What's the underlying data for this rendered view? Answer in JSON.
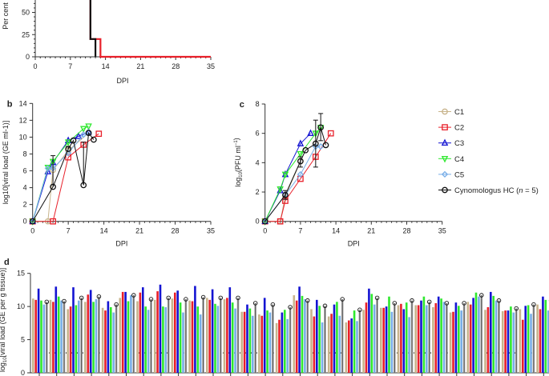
{
  "colors": {
    "C1": "#c8b48c",
    "C2": "#e8202a",
    "C3": "#1414d2",
    "C4": "#2ee82e",
    "C5": "#78aee8",
    "HC": "#111111",
    "HC_bar": "#a8a8a8"
  },
  "legend": [
    {
      "key": "C1",
      "label": "C1",
      "marker": "circle"
    },
    {
      "key": "C2",
      "label": "C2",
      "marker": "square"
    },
    {
      "key": "C3",
      "label": "C3",
      "marker": "triangle-up"
    },
    {
      "key": "C4",
      "label": "C4",
      "marker": "triangle-down"
    },
    {
      "key": "C5",
      "label": "C5",
      "marker": "diamond"
    },
    {
      "key": "HC",
      "label": "Cynomologus HC (",
      "label_italic": "n",
      "label_end": " = 5)",
      "marker": "circle"
    }
  ],
  "chart_data": [
    {
      "panel": "a",
      "type": "line",
      "step": true,
      "ylabel": "Per cent",
      "xlabel": "DPI",
      "xlim": [
        0,
        35
      ],
      "xticks": [
        0,
        7,
        14,
        21,
        28,
        35
      ],
      "yticks": [
        0,
        25,
        50
      ],
      "series": [
        {
          "key": "C2",
          "x": [
            0,
            11,
            11,
            13,
            13,
            35
          ],
          "y": [
            100,
            100,
            20,
            20,
            0,
            0
          ]
        },
        {
          "key": "HC",
          "x": [
            0,
            11,
            11,
            12,
            12
          ],
          "y": [
            100,
            100,
            20,
            20,
            0
          ]
        }
      ]
    },
    {
      "panel": "b",
      "label": "b",
      "type": "line",
      "xlabel": "DPI",
      "ylabel": "log10[viral load (GE ml-1)]",
      "ylabel_parts": [
        "log",
        "10",
        "[viral load (GE ml",
        "−1",
        ")]"
      ],
      "xlim": [
        0,
        35
      ],
      "ylim": [
        0,
        14
      ],
      "xticks": [
        0,
        7,
        14,
        21,
        28,
        35
      ],
      "yticks": [
        0,
        2,
        4,
        6,
        8,
        10,
        12,
        14
      ],
      "series": [
        {
          "key": "C1",
          "x": [
            0,
            3,
            4,
            7,
            11
          ],
          "y": [
            0,
            0,
            6.1,
            8.4,
            10.5
          ]
        },
        {
          "key": "C2",
          "x": [
            0,
            4,
            7,
            10,
            13
          ],
          "y": [
            0,
            0,
            7.6,
            9.1,
            10.4
          ]
        },
        {
          "key": "C3",
          "x": [
            0,
            3,
            4,
            7,
            9,
            11
          ],
          "y": [
            0,
            5.9,
            7.0,
            9.6,
            10.1,
            10.6
          ]
        },
        {
          "key": "C4",
          "x": [
            0,
            3,
            4,
            7,
            10,
            11
          ],
          "y": [
            0,
            6.4,
            7.1,
            9.4,
            11.0,
            11.3
          ]
        },
        {
          "key": "C5",
          "x": [
            0,
            3,
            4,
            7,
            10,
            11
          ],
          "y": [
            0,
            6.3,
            6.3,
            8.1,
            10.3,
            10.6
          ]
        },
        {
          "key": "HC",
          "x": [
            0,
            4,
            7,
            8,
            10,
            11,
            12
          ],
          "y": [
            0,
            4.1,
            8.6,
            9.6,
            4.3,
            10.5,
            9.7
          ],
          "err_hi": [
            0,
            7.8,
            8.9,
            9.6,
            9.4,
            10.5,
            9.7
          ]
        }
      ]
    },
    {
      "panel": "c",
      "label": "c",
      "type": "line",
      "xlabel": "DPI",
      "ylabel": "log10(PFU ml-1)",
      "ylabel_parts": [
        "log",
        "10",
        "(PFU ml",
        "−1",
        ")"
      ],
      "xlim": [
        0,
        35
      ],
      "ylim": [
        0,
        8
      ],
      "xticks": [
        0,
        7,
        14,
        21,
        28,
        35
      ],
      "yticks": [
        0,
        2,
        4,
        6,
        8
      ],
      "series": [
        {
          "key": "C1",
          "x": [
            0,
            3,
            4,
            7
          ],
          "y": [
            0,
            0,
            1.7,
            4.1
          ]
        },
        {
          "key": "C2",
          "x": [
            0,
            3,
            4,
            7,
            10,
            13
          ],
          "y": [
            0,
            0,
            1.4,
            2.9,
            4.4,
            6.0
          ]
        },
        {
          "key": "C3",
          "x": [
            0,
            3,
            4,
            7,
            9
          ],
          "y": [
            0,
            2.1,
            3.2,
            5.3,
            6.0
          ]
        },
        {
          "key": "C4",
          "x": [
            0,
            3,
            4,
            7,
            10,
            11
          ],
          "y": [
            0,
            2.2,
            3.2,
            4.6,
            6.0,
            6.4
          ]
        },
        {
          "key": "C5",
          "x": [
            0,
            4,
            7,
            10,
            11
          ],
          "y": [
            0,
            1.8,
            3.2,
            5.1,
            5.1
          ]
        },
        {
          "key": "HC",
          "x": [
            0,
            4,
            7,
            8,
            10,
            11,
            12
          ],
          "y": [
            0,
            1.8,
            4.1,
            4.85,
            5.3,
            6.4,
            5.2
          ],
          "err_lo": [
            0,
            1.5,
            3.7,
            4.85,
            3.7,
            5.5,
            5.2
          ],
          "err_hi": [
            0,
            2.1,
            4.4,
            4.85,
            6.9,
            7.35,
            5.2
          ]
        }
      ]
    },
    {
      "panel": "d",
      "label": "d",
      "type": "bar",
      "ylabel": "log10[viral load (GE per g tissue)]",
      "ylabel_parts": [
        "log",
        "10",
        "[viral load (GE per g tissue)]"
      ],
      "ylim": [
        0,
        15
      ],
      "yticks": [
        0,
        5,
        10,
        15
      ],
      "detection_limit": 3,
      "series_keys": [
        "C1",
        "C2",
        "C3",
        "C4",
        "C5",
        "HC"
      ],
      "groups": [
        [
          11.2,
          11,
          12.7,
          10.9,
          10.3,
          10.7
        ],
        [
          11,
          10.7,
          13,
          11.5,
          10.9,
          10.8
        ],
        [
          9.6,
          10,
          12.9,
          10.2,
          10.9,
          11.3
        ],
        [
          10.7,
          11.8,
          12.5,
          10.7,
          11.1,
          11.5
        ],
        [
          9.8,
          9.4,
          10.8,
          9.9,
          9.1,
          10.3
        ],
        [
          11.3,
          12.2,
          12.2,
          10.8,
          11.7,
          11.7
        ],
        [
          10.8,
          12.1,
          12.9,
          10,
          9.5,
          11.1
        ],
        [
          11,
          12.3,
          13.3,
          10,
          9.9,
          11.3
        ],
        [
          11.2,
          12.1,
          12.4,
          10.6,
          9.1,
          11.1
        ],
        [
          10.9,
          10.8,
          13.1,
          10,
          8.8,
          11.4
        ],
        [
          11.3,
          11,
          12.6,
          10.4,
          10.1,
          11.3
        ],
        [
          11.1,
          11.3,
          12.9,
          10.6,
          9.7,
          11.3
        ],
        [
          9.2,
          9.2,
          10.3,
          9.7,
          8.6,
          10.5
        ],
        [
          8.8,
          8.6,
          11.3,
          9.4,
          9.1,
          10.3
        ],
        [
          7.5,
          8,
          9.1,
          9.5,
          8.1,
          9.9
        ],
        [
          11.7,
          10.9,
          13,
          11.6,
          11.1,
          10.9
        ],
        [
          9.6,
          8.5,
          11,
          10.1,
          7.6,
          10.1
        ],
        [
          8.5,
          8.9,
          10.3,
          10.7,
          8.6,
          11.1
        ],
        [
          7.6,
          7.9,
          8.2,
          9.4,
          7.8,
          9.5
        ],
        [
          9.5,
          10.6,
          12.7,
          11.9,
          10.3,
          11.3
        ],
        [
          9.8,
          9.8,
          10,
          11.5,
          9.2,
          10.5
        ],
        [
          10.2,
          10.4,
          9.6,
          10.6,
          8.4,
          10.9
        ],
        [
          10.2,
          10.2,
          10.9,
          11.5,
          10.2,
          10.7
        ],
        [
          9.9,
          10.5,
          11.5,
          11.2,
          10.7,
          10.5
        ],
        [
          9.1,
          9.2,
          10.6,
          10.1,
          9.4,
          10.5
        ],
        [
          10.7,
          10.3,
          11.3,
          12.1,
          11.5,
          11.7
        ],
        [
          9.5,
          9.9,
          12.2,
          11.6,
          10.9,
          10.9
        ],
        [
          9.3,
          9.4,
          9.4,
          10,
          9.1,
          9.7
        ],
        [
          9.6,
          8,
          10.1,
          10.2,
          8.9,
          10.3
        ],
        [
          10.3,
          9.6,
          11.5,
          11,
          9.4,
          10.9
        ]
      ]
    }
  ]
}
